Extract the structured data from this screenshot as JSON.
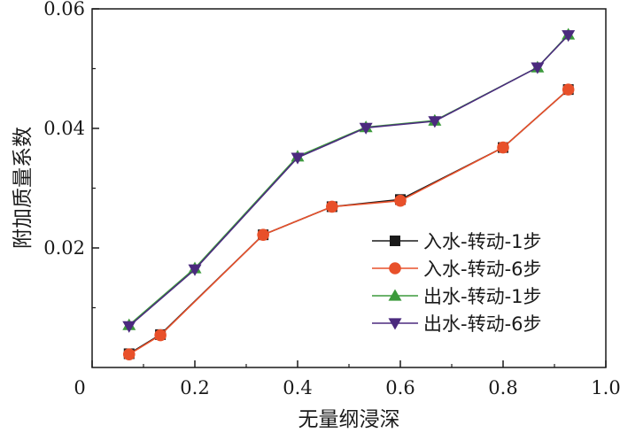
{
  "chart_data": {
    "type": "line",
    "xlabel": "无量纲浸深",
    "ylabel": "附加质量系数",
    "xlim": [
      0,
      1.0
    ],
    "ylim": [
      0,
      0.06
    ],
    "x_ticks": [
      "0",
      "0.2",
      "0.4",
      "0.6",
      "0.8",
      "1.0"
    ],
    "y_ticks": [
      "0.02",
      "0.04",
      "0.06"
    ],
    "grid": false,
    "legend_position": "bottom-right",
    "series": [
      {
        "name": "入水-转动-1步",
        "color": "#1a1a1a",
        "marker": "square",
        "x": [
          0.072,
          0.133,
          0.333,
          0.467,
          0.6,
          0.8,
          0.927
        ],
        "y": [
          0.0023,
          0.0055,
          0.0222,
          0.0269,
          0.0281,
          0.0368,
          0.0465
        ]
      },
      {
        "name": "入水-转动-6步",
        "color": "#e8502a",
        "marker": "circle",
        "x": [
          0.072,
          0.133,
          0.333,
          0.467,
          0.6,
          0.8,
          0.927
        ],
        "y": [
          0.0022,
          0.0054,
          0.0222,
          0.0269,
          0.0279,
          0.0368,
          0.0465
        ]
      },
      {
        "name": "出水-转动-1步",
        "color": "#3c9a3c",
        "marker": "triangle-up",
        "x": [
          0.072,
          0.2,
          0.4,
          0.533,
          0.667,
          0.867,
          0.927
        ],
        "y": [
          0.0071,
          0.0166,
          0.0353,
          0.0402,
          0.0413,
          0.0502,
          0.0557
        ]
      },
      {
        "name": "出水-转动-6步",
        "color": "#4b2a7e",
        "marker": "triangle-down",
        "x": [
          0.072,
          0.2,
          0.4,
          0.533,
          0.667,
          0.867,
          0.927
        ],
        "y": [
          0.0069,
          0.0164,
          0.0351,
          0.0401,
          0.0412,
          0.0502,
          0.0556
        ]
      }
    ]
  }
}
